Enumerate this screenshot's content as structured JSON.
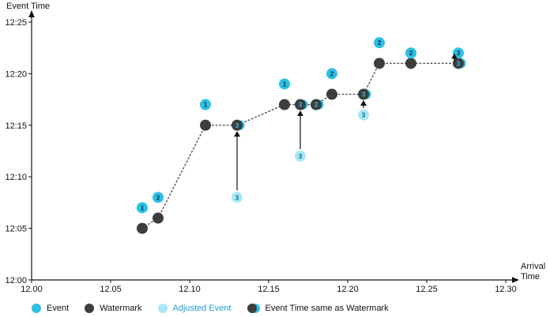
{
  "colors": {
    "event": "#2bc0e4",
    "watermark": "#3d3d3d",
    "adjusted_event": "#a8e7f6",
    "event_number": "#0d3349",
    "adjusted_number": "#0e6f94",
    "same_number": "#2bc0e4",
    "axis": "#111111",
    "watermark_line": "#4d4d4d",
    "arrow": "#111111",
    "legend_text": "#111111",
    "adjusted_legend_text": "#1e9cd7"
  },
  "chart_data": {
    "type": "scatter",
    "units": "minutes after 12:00",
    "x_axis": {
      "label_lines": [
        "Arrival",
        "Time"
      ],
      "range_minutes": [
        0,
        30
      ],
      "ticks": [
        {
          "m": 0,
          "label": "12.00"
        },
        {
          "m": 5,
          "label": "12.05"
        },
        {
          "m": 10,
          "label": "12.10"
        },
        {
          "m": 15,
          "label": "12.15"
        },
        {
          "m": 20,
          "label": "12.20"
        },
        {
          "m": 25,
          "label": "12.25"
        },
        {
          "m": 30,
          "label": "12.30"
        }
      ]
    },
    "y_axis": {
      "label": "Event Time",
      "range_minutes": [
        0,
        25
      ],
      "ticks": [
        {
          "m": 0,
          "label": "12:00"
        },
        {
          "m": 5,
          "label": "12:05"
        },
        {
          "m": 10,
          "label": "12:10"
        },
        {
          "m": 15,
          "label": "12:15"
        },
        {
          "m": 20,
          "label": "12:20"
        },
        {
          "m": 25,
          "label": "12:25"
        }
      ]
    },
    "events": [
      {
        "arrival_m": 7,
        "time_m": 7,
        "label": "1"
      },
      {
        "arrival_m": 8,
        "time_m": 8,
        "label": "2"
      },
      {
        "arrival_m": 11,
        "time_m": 17,
        "label": "1"
      },
      {
        "arrival_m": 16,
        "time_m": 19,
        "label": "1"
      },
      {
        "arrival_m": 19,
        "time_m": 20,
        "label": "2"
      },
      {
        "arrival_m": 22,
        "time_m": 23,
        "label": "2"
      },
      {
        "arrival_m": 24,
        "time_m": 22,
        "label": "2"
      },
      {
        "arrival_m": 27,
        "time_m": 22,
        "label": "3"
      }
    ],
    "watermarks": [
      {
        "arrival_m": 7,
        "value_m": 5
      },
      {
        "arrival_m": 8,
        "value_m": 6
      },
      {
        "arrival_m": 11,
        "value_m": 15
      },
      {
        "arrival_m": 16,
        "value_m": 17
      },
      {
        "arrival_m": 19,
        "value_m": 18
      },
      {
        "arrival_m": 22,
        "value_m": 21
      },
      {
        "arrival_m": 24,
        "value_m": 21
      }
    ],
    "watermark_line": [
      [
        7,
        5
      ],
      [
        8,
        6
      ],
      [
        11,
        15
      ],
      [
        13,
        15
      ],
      [
        16,
        17
      ],
      [
        17,
        17
      ],
      [
        18,
        17
      ],
      [
        19,
        18
      ],
      [
        21,
        18
      ],
      [
        22,
        21
      ],
      [
        24,
        21
      ],
      [
        27,
        21
      ]
    ],
    "same_as_watermark": [
      {
        "arrival_m": 13,
        "time_m": 15,
        "label": "3"
      },
      {
        "arrival_m": 17,
        "time_m": 17,
        "label": "3"
      },
      {
        "arrival_m": 18,
        "time_m": 17,
        "label": "2"
      },
      {
        "arrival_m": 21,
        "time_m": 18,
        "label": "3"
      },
      {
        "arrival_m": 27,
        "time_m": 21,
        "label": "3"
      }
    ],
    "adjusted_events": [
      {
        "arrival_m": 13,
        "original_time_m": 8,
        "adjusted_time_m": 15,
        "label": "3",
        "show_original": true
      },
      {
        "arrival_m": 17,
        "original_time_m": 12,
        "adjusted_time_m": 17,
        "label": "3",
        "show_original": true
      },
      {
        "arrival_m": 21,
        "original_time_m": 16,
        "adjusted_time_m": 18,
        "label": "3",
        "show_original": true
      },
      {
        "arrival_m": 27,
        "original_time_m": 21,
        "adjusted_time_m": 22,
        "label": "3",
        "show_original": false,
        "arrow_dx": -5
      }
    ],
    "legend": [
      {
        "kind": "event",
        "label": "Event"
      },
      {
        "kind": "watermark",
        "label": "Watermark"
      },
      {
        "kind": "adjusted",
        "label": "Adjusted Event"
      },
      {
        "kind": "same",
        "label": "Event Time same as Watermark"
      }
    ]
  }
}
